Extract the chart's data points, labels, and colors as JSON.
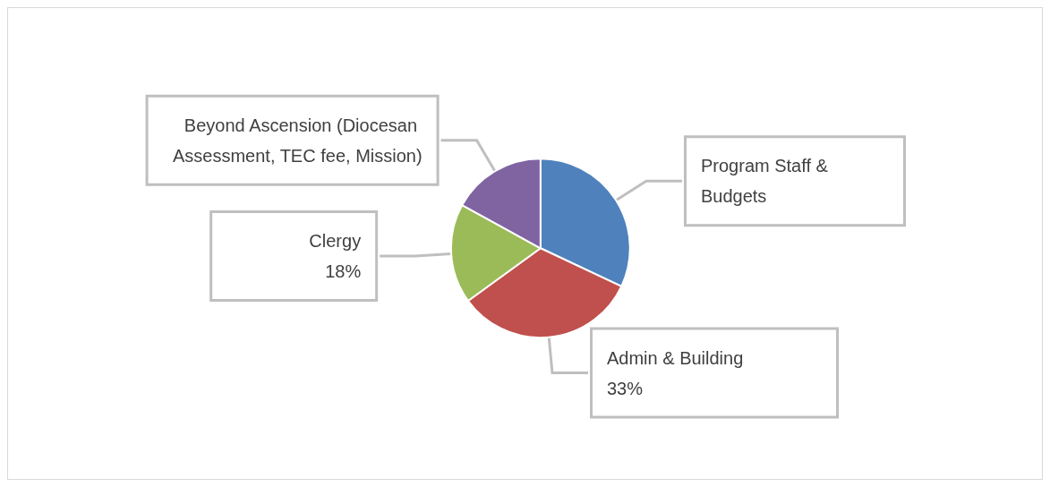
{
  "chart_data": {
    "type": "pie",
    "categories": [
      "Program Staff & Budgets",
      "Admin & Building",
      "Clergy",
      "Beyond Ascension (Diocesan Assessment, TEC fee, Mission)"
    ],
    "values": [
      32,
      33,
      18,
      17
    ],
    "colors": [
      "#4f81bd",
      "#c0504d",
      "#9bbb59",
      "#8064a2"
    ],
    "value_labels": [
      null,
      "33%",
      "18%",
      null
    ],
    "legend": false
  }
}
